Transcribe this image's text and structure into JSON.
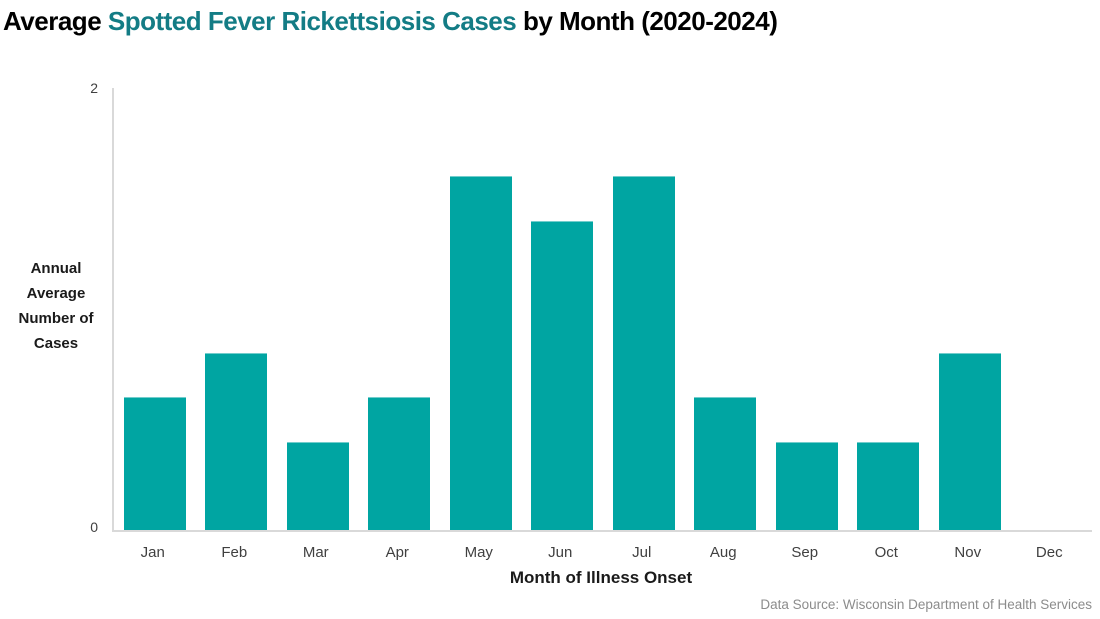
{
  "title": {
    "prefix": "Average ",
    "highlight": "Spotted Fever Rickettsiosis Cases",
    "suffix": " by Month (2020-2024)"
  },
  "colors": {
    "bar": "#00a5a2",
    "title_highlight": "#137c85",
    "axis_line": "#d9d9d9",
    "tick_text": "#404040",
    "source_text": "#8c8c8c"
  },
  "chart_data": {
    "type": "bar",
    "categories": [
      "Jan",
      "Feb",
      "Mar",
      "Apr",
      "May",
      "Jun",
      "Jul",
      "Aug",
      "Sep",
      "Oct",
      "Nov",
      "Dec"
    ],
    "values": [
      0.6,
      0.8,
      0.4,
      0.6,
      1.6,
      1.4,
      1.6,
      0.6,
      0.4,
      0.4,
      0.8,
      0
    ],
    "title": "Average Spotted Fever Rickettsiosis Cases by Month (2020-2024)",
    "xlabel": "Month of Illness Onset",
    "ylabel": "Annual Average Number of Cases",
    "ylim": [
      0,
      2
    ],
    "yticks": [
      0,
      2
    ],
    "grid": false,
    "legend": null,
    "bar_color": "#00a5a2"
  },
  "y_axis": {
    "title_lines": "Annual\nAverage\nNumber of\nCases",
    "tick_top": "2",
    "tick_bottom": "0"
  },
  "x_axis": {
    "title": "Month of Illness Onset"
  },
  "source": {
    "text": "Data Source: Wisconsin Department of Health Services"
  }
}
